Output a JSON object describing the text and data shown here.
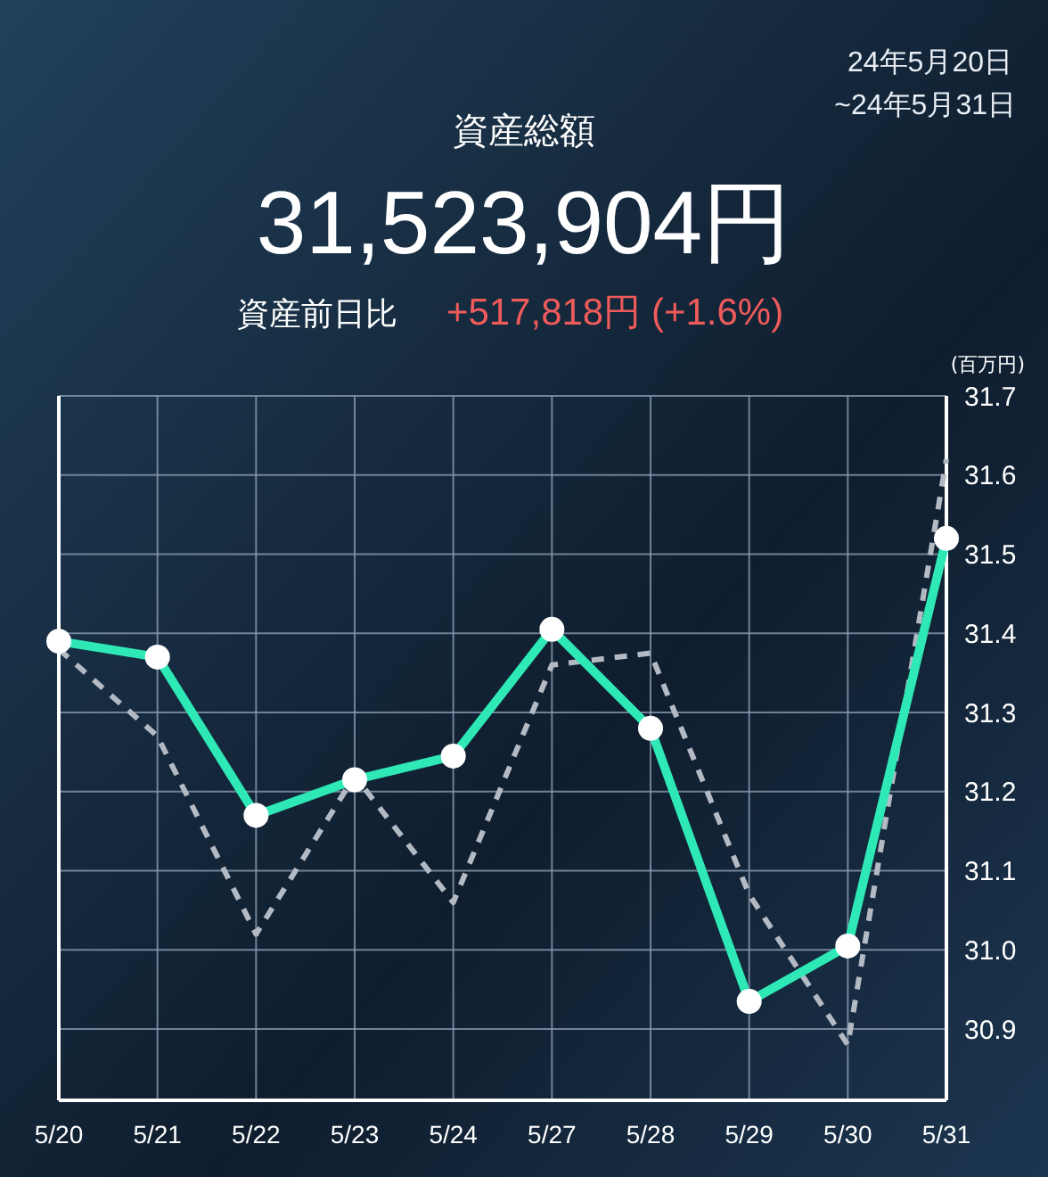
{
  "chart_data": {
    "type": "line",
    "title": "資産総額",
    "ylabel": "(百万円)",
    "annotations": [
      "24年5月20日",
      "~24年5月31日",
      "31,523,904円",
      "資産前日比",
      "+517,818円 (+1.6%)"
    ],
    "categories": [
      "5/20",
      "5/21",
      "5/22",
      "5/23",
      "5/24",
      "5/27",
      "5/28",
      "5/29",
      "5/30",
      "5/31"
    ],
    "series": [
      {
        "color": "#b4bac4",
        "line_style": "dashed",
        "marker": "none",
        "values": [
          31.38,
          31.27,
          31.02,
          31.22,
          31.06,
          31.36,
          31.375,
          31.07,
          30.88,
          31.62
        ]
      },
      {
        "color": "#2ee8b6",
        "line_style": "solid",
        "marker": "circle",
        "values": [
          31.39,
          31.37,
          31.17,
          31.215,
          31.245,
          31.405,
          31.28,
          30.935,
          31.005,
          31.52
        ]
      }
    ],
    "ylim": [
      30.81,
      31.7
    ],
    "yticks": [
      30.9,
      {
        "value": 31,
        "label": "31.0"
      },
      31.1,
      31.2,
      31.3,
      31.4,
      31.5,
      31.6,
      31.7
    ],
    "grid": true
  }
}
